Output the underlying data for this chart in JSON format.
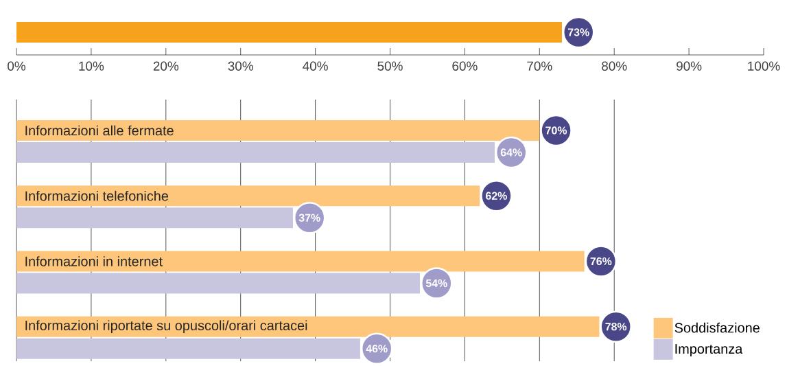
{
  "chart_data": [
    {
      "type": "bar",
      "orientation": "horizontal",
      "categories": [
        null
      ],
      "values": [
        73
      ],
      "color": "#f6a21c",
      "value_labels": [
        "73%"
      ],
      "xlim": [
        0,
        100
      ],
      "xticks": [
        {
          "value": 0,
          "label": "0%"
        },
        {
          "value": 10,
          "label": "10%"
        },
        {
          "value": 20,
          "label": "20%"
        },
        {
          "value": 30,
          "label": "30%"
        },
        {
          "value": 40,
          "label": "40%"
        },
        {
          "value": 50,
          "label": "50%"
        },
        {
          "value": 60,
          "label": "60%"
        },
        {
          "value": 70,
          "label": "70%"
        },
        {
          "value": 80,
          "label": "80%"
        },
        {
          "value": 90,
          "label": "90%"
        },
        {
          "value": 100,
          "label": "100%"
        }
      ]
    },
    {
      "type": "bar",
      "orientation": "horizontal",
      "categories": [
        "Informazioni alle fermate",
        "Informazioni telefoniche",
        "Informazioni in internet",
        "Informazioni riportate su opuscoli/orari cartacei"
      ],
      "series": [
        {
          "name": "Soddisfazione",
          "color": "#fdc67a",
          "values": [
            70,
            62,
            76,
            78
          ],
          "value_labels": [
            "70%",
            "62%",
            "76%",
            "78%"
          ]
        },
        {
          "name": "Importanza",
          "color": "#c8c6de",
          "values": [
            64,
            37,
            54,
            46
          ],
          "value_labels": [
            "64%",
            "37%",
            "54%",
            "46%"
          ]
        }
      ],
      "xlim": [
        0,
        100
      ],
      "xticks": [
        0,
        10,
        20,
        30,
        40,
        50,
        60,
        70,
        80
      ],
      "tick_labels": false,
      "grid": "x",
      "legend": "bottom right"
    }
  ]
}
